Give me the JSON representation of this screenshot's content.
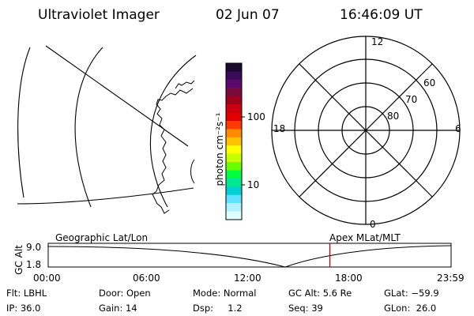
{
  "header": {
    "instrument": "Ultraviolet Imager",
    "date": "02 Jun 07",
    "time": "16:46:09 UT"
  },
  "colorbar": {
    "label": "photon cm⁻²s⁻¹",
    "ticks": [
      "100",
      "10"
    ],
    "colors": [
      "#1a0a2e",
      "#3a0a5a",
      "#5a0a6a",
      "#7a0a3a",
      "#a0001a",
      "#cc0010",
      "#e00000",
      "#ff3a00",
      "#ff8a00",
      "#ffc000",
      "#ffff00",
      "#c8ff00",
      "#6aff00",
      "#00ff40",
      "#00e890",
      "#00d0d0",
      "#60e0ff",
      "#b0f0ff",
      "#e0ffff"
    ]
  },
  "polar_plot": {
    "lat_labels": [
      "80",
      "70",
      "60"
    ],
    "mlt_labels": {
      "top": "12",
      "bottom": "0",
      "left": "18",
      "right": "6"
    }
  },
  "timeline": {
    "left_label": "Geographic Lat/Lon",
    "right_label": "Apex MLat/MLT",
    "y_axis_label": "GC Alt",
    "y_ticks": [
      "9.0",
      "1.8"
    ],
    "x_ticks": [
      "00:00",
      "06:00",
      "12:00",
      "18:00",
      "23:59"
    ],
    "current_time_hours": 16.77,
    "marker_color": "#cc0000"
  },
  "info": {
    "flt": "Flt: LBHL",
    "ip": "IP: 36.0",
    "door": "Door: Open",
    "gain": "Gain: 14",
    "mode": "Mode: Normal",
    "dsp": "Dsp:     1.2",
    "gcalt": "GC Alt: 5.6 Re",
    "seq": "Seq: 39",
    "glat": "GLat: −59.9",
    "glon": "GLon:  26.0"
  }
}
